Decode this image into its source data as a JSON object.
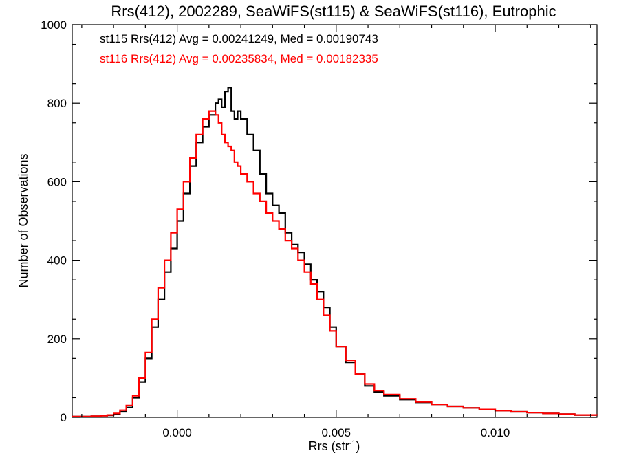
{
  "chart_data": {
    "type": "line",
    "title": "Rrs(412), 2002289, SeaWiFS(st115) & SeaWiFS(st116), Eutrophic",
    "xlabel_main": "Rrs (str",
    "xlabel_sup": "-1",
    "xlabel_close": ")",
    "ylabel": "Number of Observations",
    "xlim": [
      -0.0033,
      0.0132
    ],
    "ylim": [
      0,
      1000
    ],
    "x_ticks": [
      0.0,
      0.005,
      0.01
    ],
    "x_tick_labels": [
      "0.000",
      "0.005",
      "0.010"
    ],
    "y_ticks": [
      0,
      200,
      400,
      600,
      800,
      1000
    ],
    "y_tick_labels": [
      "0",
      "200",
      "400",
      "600",
      "800",
      "1000"
    ],
    "grid": false,
    "legend_placement": "top-left",
    "series": [
      {
        "label": "st115 Rrs(412) Avg = 0.00241249, Med = 0.00190743",
        "color": "#000000",
        "x": [
          -0.0033,
          -0.003,
          -0.0027,
          -0.0024,
          -0.0022,
          -0.002,
          -0.0018,
          -0.0016,
          -0.0014,
          -0.0012,
          -0.001,
          -0.0008,
          -0.0006,
          -0.0004,
          -0.0002,
          0.0,
          0.0002,
          0.0004,
          0.0006,
          0.0008,
          0.001,
          0.0012,
          0.0013,
          0.0014,
          0.0015,
          0.0016,
          0.0017,
          0.0018,
          0.0019,
          0.002,
          0.0022,
          0.0024,
          0.0026,
          0.0028,
          0.003,
          0.0032,
          0.0034,
          0.0036,
          0.0038,
          0.004,
          0.0042,
          0.0044,
          0.0046,
          0.0048,
          0.005,
          0.0053,
          0.0056,
          0.0059,
          0.0062,
          0.0065,
          0.007,
          0.0075,
          0.008,
          0.0085,
          0.009,
          0.0095,
          0.01,
          0.0105,
          0.011,
          0.0115,
          0.012,
          0.0125,
          0.0132
        ],
        "y": [
          2,
          2,
          3,
          4,
          5,
          8,
          14,
          25,
          50,
          90,
          150,
          230,
          300,
          370,
          430,
          500,
          570,
          640,
          700,
          740,
          770,
          800,
          810,
          790,
          830,
          840,
          780,
          760,
          780,
          760,
          720,
          680,
          620,
          570,
          540,
          520,
          470,
          440,
          420,
          390,
          350,
          320,
          280,
          230,
          180,
          140,
          110,
          80,
          65,
          55,
          45,
          38,
          33,
          28,
          24,
          20,
          17,
          14,
          12,
          10,
          8,
          6,
          5
        ]
      },
      {
        "label": "st116 Rrs(412) Avg = 0.00235834, Med = 0.00182335",
        "color": "#ff0000",
        "x": [
          -0.0033,
          -0.003,
          -0.0027,
          -0.0024,
          -0.0022,
          -0.002,
          -0.0018,
          -0.0016,
          -0.0014,
          -0.0012,
          -0.001,
          -0.0008,
          -0.0006,
          -0.0004,
          -0.0002,
          0.0,
          0.0002,
          0.0004,
          0.0006,
          0.0008,
          0.001,
          0.0012,
          0.0013,
          0.0014,
          0.0015,
          0.0016,
          0.0017,
          0.0018,
          0.0019,
          0.002,
          0.0022,
          0.0024,
          0.0026,
          0.0028,
          0.003,
          0.0032,
          0.0034,
          0.0036,
          0.0038,
          0.004,
          0.0042,
          0.0044,
          0.0046,
          0.0048,
          0.005,
          0.0053,
          0.0056,
          0.0059,
          0.0062,
          0.0065,
          0.007,
          0.0075,
          0.008,
          0.0085,
          0.009,
          0.0095,
          0.01,
          0.0105,
          0.011,
          0.0115,
          0.012,
          0.0125,
          0.0132
        ],
        "y": [
          2,
          2,
          3,
          4,
          6,
          10,
          18,
          30,
          55,
          100,
          165,
          250,
          330,
          400,
          470,
          530,
          600,
          660,
          720,
          760,
          780,
          770,
          750,
          720,
          700,
          690,
          680,
          650,
          640,
          620,
          600,
          570,
          550,
          520,
          500,
          480,
          450,
          430,
          400,
          370,
          340,
          300,
          260,
          220,
          180,
          145,
          110,
          85,
          68,
          58,
          47,
          39,
          33,
          28,
          24,
          20,
          17,
          14,
          12,
          10,
          8,
          6,
          5
        ]
      }
    ]
  }
}
